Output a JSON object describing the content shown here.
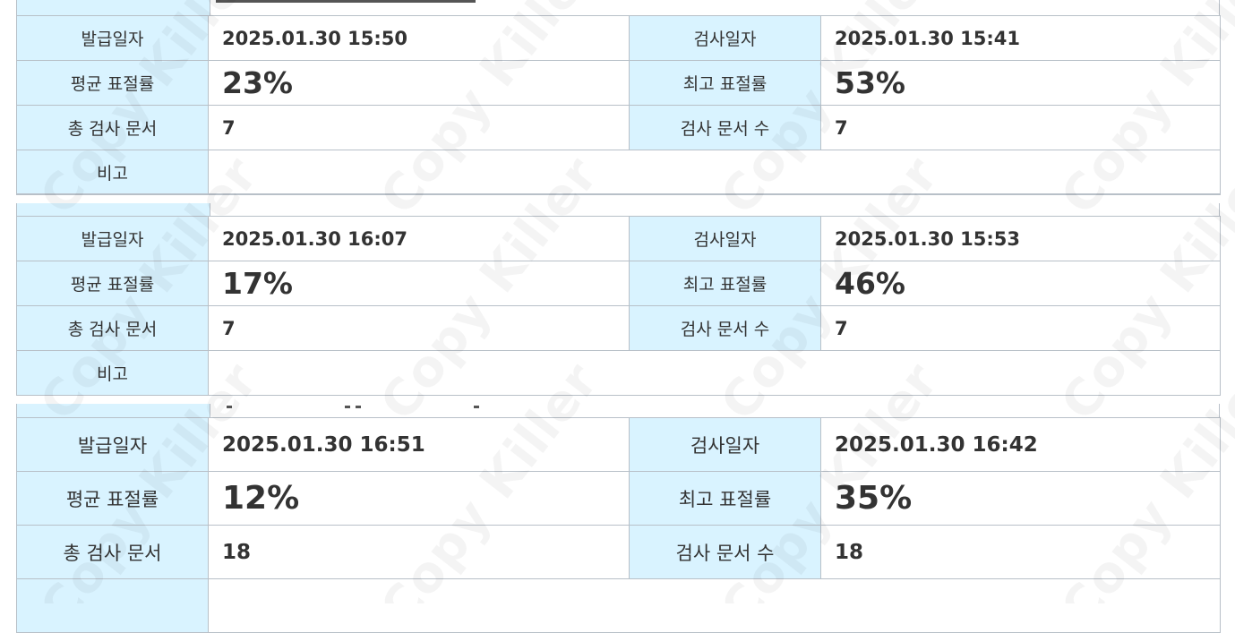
{
  "reports": [
    {
      "issue_label": "발급일자",
      "issue_date": "2025.01.30 15:50",
      "check_label": "검사일자",
      "check_date": "2025.01.30 15:41",
      "avg_label": "평균 표절률",
      "avg_rate": "23%",
      "max_label": "최고 표절률",
      "max_rate": "53%",
      "total_label": "총 검사 문서",
      "total_docs": "7",
      "count_label": "검사 문서 수",
      "count_docs": "7",
      "note_label": "비고",
      "note": ""
    },
    {
      "issue_label": "발급일자",
      "issue_date": "2025.01.30 16:07",
      "check_label": "검사일자",
      "check_date": "2025.01.30 15:53",
      "avg_label": "평균 표절률",
      "avg_rate": "17%",
      "max_label": "최고 표절률",
      "max_rate": "46%",
      "total_label": "총 검사 문서",
      "total_docs": "7",
      "count_label": "검사 문서 수",
      "count_docs": "7",
      "note_label": "비고",
      "note": ""
    },
    {
      "issue_label": "발급일자",
      "issue_date": "2025.01.30 16:51",
      "check_label": "검사일자",
      "check_date": "2025.01.30 16:42",
      "avg_label": "평균 표절률",
      "avg_rate": "12%",
      "max_label": "최고 표절률",
      "max_rate": "35%",
      "total_label": "총 검사 문서",
      "total_docs": "18",
      "count_label": "검사 문서 수",
      "count_docs": "18"
    }
  ],
  "watermark": "Copy Killer",
  "colors": {
    "label_bg": "#d9f3ff",
    "border": "#b8c0c8",
    "rate_orange": "#ff7a1a",
    "rate_pink": "#f0146e",
    "rate_blue": "#22b8ec"
  }
}
